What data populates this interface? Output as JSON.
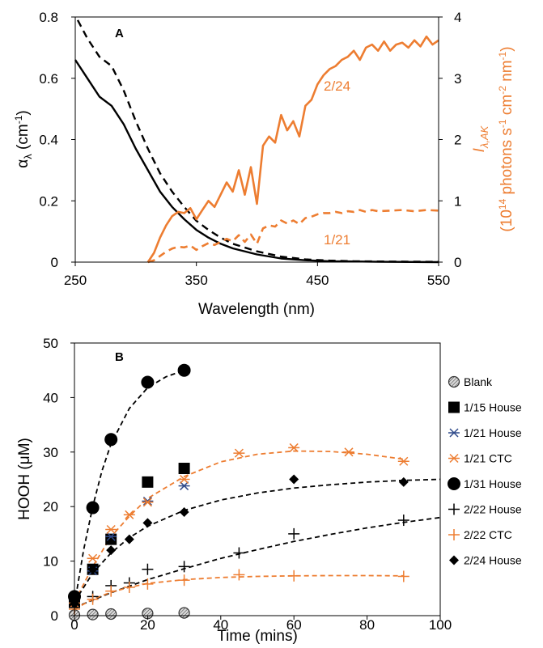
{
  "colors": {
    "black": "#000000",
    "orange": "#ED7D31",
    "grey_fill": "#d9d9d9"
  },
  "chart_data": [
    {
      "panel": "A",
      "type": "line",
      "xlabel": "Wavelength (nm)",
      "xlim": [
        250,
        550
      ],
      "x_ticks": [
        "250",
        "350",
        "450",
        "550"
      ],
      "ylabel": "αλ (cm-1)",
      "ylim": [
        0,
        0.8
      ],
      "y_ticks": [
        "0",
        "0.2",
        "0.4",
        "0.6",
        "0.8"
      ],
      "y2label": "Iλ,AK (1014 photons s-1 cm-2 nm-1)",
      "y2lim": [
        0,
        4
      ],
      "y2_ticks": [
        "0",
        "1",
        "2",
        "3",
        "4"
      ],
      "annotations": [
        "2/24",
        "1/21"
      ],
      "series": [
        {
          "axis": "left",
          "color": "#000000",
          "dash": "solid",
          "x": [
            250,
            260,
            270,
            280,
            290,
            300,
            310,
            320,
            330,
            340,
            350,
            360,
            370,
            380,
            400,
            420,
            440,
            460,
            480,
            500,
            550
          ],
          "y": [
            0.66,
            0.6,
            0.54,
            0.51,
            0.45,
            0.37,
            0.3,
            0.23,
            0.18,
            0.14,
            0.105,
            0.08,
            0.06,
            0.045,
            0.025,
            0.012,
            0.006,
            0.003,
            0.002,
            0.001,
            0.0
          ]
        },
        {
          "axis": "left",
          "color": "#000000",
          "dash": "dashed",
          "x": [
            252,
            260,
            270,
            280,
            290,
            300,
            310,
            320,
            330,
            340,
            350,
            360,
            370,
            380,
            400,
            420,
            440,
            460,
            480,
            500,
            550
          ],
          "y": [
            0.79,
            0.73,
            0.67,
            0.64,
            0.56,
            0.46,
            0.37,
            0.29,
            0.23,
            0.18,
            0.135,
            0.105,
            0.08,
            0.06,
            0.035,
            0.018,
            0.009,
            0.005,
            0.003,
            0.002,
            0.001
          ]
        },
        {
          "axis": "right",
          "color": "#ED7D31",
          "dash": "solid",
          "label": "2/24",
          "x": [
            310,
            315,
            320,
            325,
            330,
            335,
            340,
            345,
            350,
            355,
            360,
            365,
            370,
            375,
            380,
            385,
            390,
            395,
            400,
            405,
            410,
            415,
            420,
            425,
            430,
            435,
            440,
            445,
            450,
            455,
            460,
            465,
            470,
            475,
            480,
            485,
            490,
            495,
            500,
            505,
            510,
            515,
            520,
            525,
            530,
            535,
            540,
            545,
            550
          ],
          "y": [
            0.0,
            0.15,
            0.4,
            0.6,
            0.75,
            0.82,
            0.8,
            0.88,
            0.7,
            0.85,
            1.0,
            0.9,
            1.1,
            1.3,
            1.15,
            1.5,
            1.1,
            1.55,
            0.95,
            1.9,
            2.05,
            1.95,
            2.4,
            2.15,
            2.3,
            2.05,
            2.55,
            2.65,
            2.9,
            3.05,
            3.15,
            3.2,
            3.3,
            3.35,
            3.45,
            3.3,
            3.5,
            3.55,
            3.45,
            3.6,
            3.45,
            3.55,
            3.58,
            3.5,
            3.62,
            3.52,
            3.68,
            3.55,
            3.62
          ]
        },
        {
          "axis": "right",
          "color": "#ED7D31",
          "dash": "dashed",
          "label": "1/21",
          "x": [
            310,
            315,
            320,
            325,
            330,
            335,
            340,
            345,
            350,
            355,
            360,
            365,
            370,
            375,
            380,
            385,
            390,
            395,
            400,
            405,
            410,
            415,
            420,
            425,
            430,
            435,
            440,
            445,
            450,
            455,
            460,
            465,
            470,
            475,
            480,
            485,
            490,
            495,
            500,
            510,
            520,
            530,
            540,
            550
          ],
          "y": [
            0.0,
            0.03,
            0.1,
            0.17,
            0.22,
            0.25,
            0.24,
            0.27,
            0.2,
            0.26,
            0.31,
            0.28,
            0.33,
            0.38,
            0.34,
            0.44,
            0.33,
            0.45,
            0.3,
            0.55,
            0.6,
            0.58,
            0.68,
            0.63,
            0.68,
            0.62,
            0.72,
            0.74,
            0.78,
            0.8,
            0.8,
            0.82,
            0.8,
            0.83,
            0.82,
            0.85,
            0.82,
            0.85,
            0.83,
            0.84,
            0.85,
            0.83,
            0.85,
            0.84
          ]
        }
      ]
    },
    {
      "panel": "B",
      "type": "scatter",
      "xlabel": "Time (mins)",
      "xlim": [
        0,
        100
      ],
      "x_ticks": [
        "0",
        "20",
        "40",
        "60",
        "80",
        "100"
      ],
      "ylabel": "HOOH (μM)",
      "ylim": [
        0,
        50
      ],
      "y_ticks": [
        "0",
        "10",
        "20",
        "30",
        "40",
        "50"
      ],
      "legend_position": "right",
      "series": [
        {
          "name": "Blank",
          "marker": "hatched-circle",
          "color": "#000000",
          "dash": "none",
          "x": [
            0,
            5,
            10,
            20,
            30
          ],
          "y": [
            0.1,
            0.2,
            0.3,
            0.4,
            0.5
          ]
        },
        {
          "name": "1/15 House",
          "marker": "square",
          "color": "#000000",
          "dash": "none",
          "x": [
            0,
            5,
            10,
            20,
            30
          ],
          "y": [
            2.5,
            8.5,
            14.0,
            24.5,
            27.0
          ]
        },
        {
          "name": "1/21 House",
          "marker": "star",
          "color": "#2F4A8A",
          "dash": "none",
          "x": [
            0,
            5,
            10,
            20,
            30
          ],
          "y": [
            2.3,
            8.2,
            14.5,
            21.0,
            23.8
          ]
        },
        {
          "name": "1/21 CTC",
          "marker": "star",
          "color": "#ED7D31",
          "dash": "orange",
          "x": [
            0,
            5,
            10,
            15,
            20,
            30,
            45,
            60,
            75,
            90
          ],
          "y": [
            2.3,
            10.5,
            15.8,
            18.5,
            20.8,
            25.0,
            29.8,
            30.8,
            30.0,
            28.3
          ],
          "fit_x": [
            0,
            5,
            10,
            15,
            20,
            30,
            40,
            50,
            60,
            70,
            80,
            90
          ],
          "fit_y": [
            2.5,
            9.0,
            14.5,
            18.2,
            21.5,
            25.5,
            28.2,
            29.6,
            30.2,
            30.1,
            29.6,
            28.7
          ]
        },
        {
          "name": "1/31 House",
          "marker": "circle",
          "color": "#000000",
          "dash": "black",
          "x": [
            0,
            5,
            10,
            20,
            30
          ],
          "y": [
            3.5,
            19.8,
            32.3,
            42.8,
            45.0
          ],
          "fit_x": [
            0,
            2.5,
            5,
            7.5,
            10,
            15,
            20,
            25,
            30
          ],
          "fit_y": [
            2.0,
            12.0,
            20.0,
            26.5,
            31.5,
            38.0,
            41.8,
            43.8,
            45.0
          ]
        },
        {
          "name": "2/22 House",
          "marker": "plus",
          "color": "#000000",
          "dash": "black",
          "x": [
            0,
            5,
            10,
            15,
            20,
            30,
            45,
            60,
            90
          ],
          "y": [
            1.5,
            3.5,
            5.5,
            6.0,
            8.5,
            9.0,
            11.5,
            15.0,
            17.5
          ],
          "fit_x": [
            0,
            10,
            20,
            30,
            40,
            50,
            60,
            70,
            80,
            90,
            100
          ],
          "fit_y": [
            1.5,
            4.2,
            6.6,
            8.6,
            10.5,
            12.1,
            13.6,
            14.9,
            16.1,
            17.1,
            18.0
          ]
        },
        {
          "name": "2/22 CTC",
          "marker": "plus",
          "color": "#ED7D31",
          "dash": "orange",
          "x": [
            0,
            5,
            10,
            15,
            20,
            30,
            45,
            60,
            90
          ],
          "y": [
            1.2,
            3.0,
            4.5,
            5.2,
            5.8,
            6.5,
            7.5,
            7.3,
            7.2
          ],
          "fit_x": [
            0,
            5,
            10,
            15,
            20,
            30,
            40,
            50,
            60,
            70,
            80,
            90
          ],
          "fit_y": [
            1.2,
            3.0,
            4.3,
            5.2,
            5.9,
            6.6,
            7.0,
            7.2,
            7.3,
            7.35,
            7.35,
            7.3
          ]
        },
        {
          "name": "2/24 House",
          "marker": "diamond",
          "color": "#000000",
          "dash": "black",
          "x": [
            0,
            5,
            10,
            15,
            20,
            30,
            60,
            90
          ],
          "y": [
            2.2,
            8.5,
            12.0,
            14.0,
            17.0,
            19.0,
            25.0,
            24.5
          ],
          "fit_x": [
            0,
            5,
            10,
            15,
            20,
            30,
            40,
            50,
            60,
            70,
            80,
            90,
            100
          ],
          "fit_y": [
            2.5,
            7.8,
            11.5,
            14.3,
            16.4,
            19.3,
            21.2,
            22.5,
            23.4,
            24.0,
            24.5,
            24.8,
            25.0
          ]
        }
      ]
    }
  ]
}
